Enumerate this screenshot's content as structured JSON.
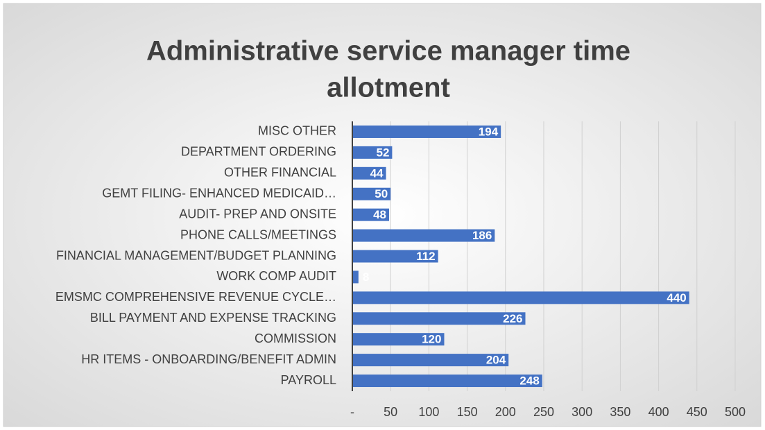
{
  "chart_data": {
    "type": "bar",
    "orientation": "horizontal",
    "title_lines": [
      "Administrative service manager time",
      "allotment"
    ],
    "categories": [
      "MISC OTHER",
      "DEPARTMENT ORDERING",
      "OTHER FINANCIAL",
      "GEMT FILING- ENHANCED MEDICAID…",
      "AUDIT- PREP AND ONSITE",
      "PHONE CALLS/MEETINGS",
      "FINANCIAL MANAGEMENT/BUDGET PLANNING",
      "WORK COMP AUDIT",
      "EMSMC COMPREHENSIVE REVENUE CYCLE…",
      "BILL PAYMENT AND EXPENSE TRACKING",
      "COMMISSION",
      "HR ITEMS - ONBOARDING/BENEFIT ADMIN",
      "PAYROLL"
    ],
    "values": [
      194,
      52,
      44,
      50,
      48,
      186,
      112,
      8,
      440,
      226,
      120,
      204,
      248
    ],
    "color": "#4472c4",
    "xlim": [
      0,
      500
    ],
    "xticks": [
      {
        "value": 0,
        "label": "-"
      },
      50,
      100,
      150,
      200,
      250,
      300,
      350,
      400,
      450,
      500
    ],
    "grid": true
  }
}
